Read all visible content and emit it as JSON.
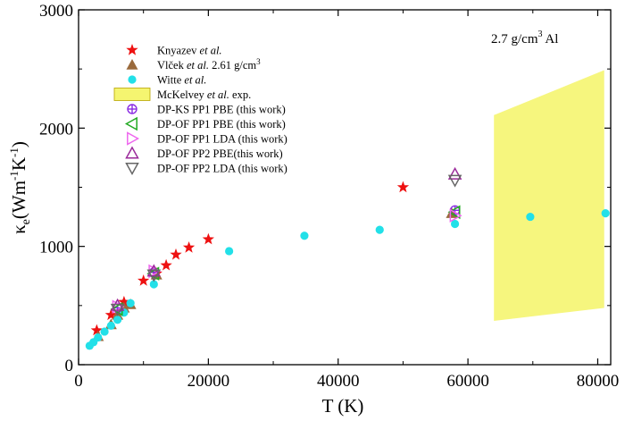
{
  "chart_data": {
    "type": "scatter",
    "title": "",
    "annotation": {
      "pre": "2.7 g/cm",
      "sup": "3",
      "post": " Al"
    },
    "xlabel": "T (K)",
    "ylabel": {
      "symbol": "κ",
      "sub": "e",
      "open": "(Wm",
      "sup1": "-1",
      "mid": "K",
      "sup2": "-1",
      "close": ")"
    },
    "xlim": [
      0,
      82000
    ],
    "ylim": [
      0,
      3000
    ],
    "xticks": [
      0,
      20000,
      40000,
      60000,
      80000
    ],
    "xtick_labels": [
      "0",
      "20000",
      "40000",
      "60000",
      "80000"
    ],
    "yticks": [
      0,
      1000,
      2000,
      3000
    ],
    "ytick_labels": [
      "0",
      "1000",
      "2000",
      "3000"
    ],
    "grid": false,
    "legend_position": "top-left",
    "series": [
      {
        "name": "Knyazev",
        "name_italic": "et al.",
        "name_suffix": "",
        "marker": "star",
        "color": "#ee1111",
        "x": [
          2800,
          5000,
          7000,
          10000,
          12000,
          13500,
          15000,
          17000,
          20000,
          50000
        ],
        "y": [
          290,
          420,
          530,
          710,
          770,
          840,
          930,
          990,
          1060,
          1500
        ]
      },
      {
        "name": "Vlček",
        "name_italic": "et al.",
        "name_suffix": " 2.61 g/cm",
        "name_sup": "3",
        "marker": "triangle-filled",
        "color": "#9a6a3c",
        "x": [
          3000,
          5000,
          6000,
          7000,
          8000,
          12000,
          57500
        ],
        "y": [
          240,
          340,
          420,
          480,
          510,
          760,
          1280
        ]
      },
      {
        "name": "Witte",
        "name_italic": "et al.",
        "name_suffix": "",
        "marker": "circle",
        "color": "#22e0e8",
        "x": [
          1700,
          2300,
          3000,
          4000,
          5000,
          6000,
          7000,
          8000,
          11600,
          23200,
          34800,
          46400,
          58000,
          69600,
          81200
        ],
        "y": [
          160,
          190,
          230,
          280,
          330,
          380,
          440,
          520,
          680,
          960,
          1090,
          1140,
          1190,
          1250,
          1280
        ]
      },
      {
        "name": "McKelvey",
        "name_italic": "et al.",
        "name_suffix": " exp.",
        "marker": "region",
        "color": "#f5f570",
        "x": [
          64000,
          81000
        ],
        "y_low": [
          370,
          480
        ],
        "y_high": [
          2110,
          2490
        ]
      },
      {
        "name": "DP-KS PP1 PBE (this work)",
        "name_italic": "",
        "name_suffix": "",
        "marker": "circle-plus",
        "color": "#8a2be2",
        "x": [
          6000,
          11600,
          58000
        ],
        "y": [
          480,
          780,
          1305
        ]
      },
      {
        "name": "DP-OF PP1 PBE (this work)",
        "name_italic": "",
        "name_suffix": "",
        "marker": "triangle-left",
        "color": "#22aa22",
        "x": [
          6000,
          11600,
          58000
        ],
        "y": [
          470,
          770,
          1290
        ]
      },
      {
        "name": "DP-OF PP1 LDA (this work)",
        "name_italic": "",
        "name_suffix": "",
        "marker": "triangle-right",
        "color": "#ee66ee",
        "x": [
          6000,
          11600,
          58000
        ],
        "y": [
          490,
          790,
          1260
        ]
      },
      {
        "name": "DP-OF PP2 PBE(this work)",
        "name_italic": "",
        "name_suffix": "",
        "marker": "triangle-up",
        "color": "#9a2a9a",
        "x": [
          6000,
          11600,
          58000
        ],
        "y": [
          500,
          790,
          1610
        ]
      },
      {
        "name": "DP-OF PP2 LDA (this work)",
        "name_italic": "",
        "name_suffix": "",
        "marker": "triangle-down",
        "color": "#666666",
        "x": [
          6000,
          11600,
          58000
        ],
        "y": [
          470,
          760,
          1560
        ]
      }
    ]
  }
}
